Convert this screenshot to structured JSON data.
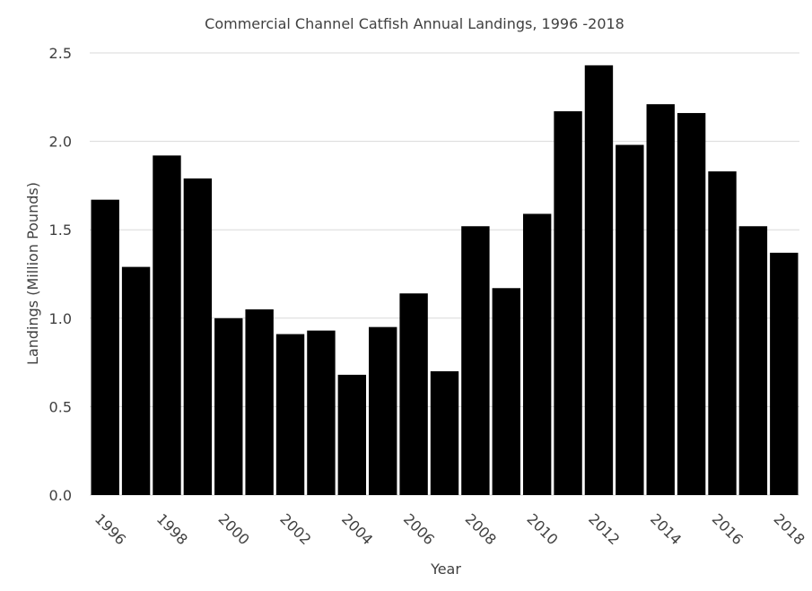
{
  "chart_data": {
    "type": "bar",
    "title": "Commercial Channel Catfish Annual Landings, 1996 -2018",
    "xlabel": "Year",
    "ylabel": "Landings (Million Pounds)",
    "ylim": [
      0,
      2.5
    ],
    "yticks": [
      "0.0",
      "0.5",
      "1.0",
      "1.5",
      "2.0",
      "2.5"
    ],
    "grid": true,
    "legend": "none",
    "bar_color": "#000000",
    "categories": [
      1996,
      1997,
      1998,
      1999,
      2000,
      2001,
      2002,
      2003,
      2004,
      2005,
      2006,
      2007,
      2008,
      2009,
      2010,
      2011,
      2012,
      2013,
      2014,
      2015,
      2016,
      2017,
      2018
    ],
    "values": [
      1.67,
      1.29,
      1.92,
      1.79,
      1.0,
      1.05,
      0.91,
      0.93,
      0.68,
      0.95,
      1.14,
      0.7,
      1.52,
      1.17,
      1.59,
      2.17,
      2.43,
      1.98,
      2.21,
      2.16,
      1.83,
      1.52,
      1.37
    ],
    "xtick_labels": [
      "1996",
      "1998",
      "2000",
      "2002",
      "2004",
      "2006",
      "2008",
      "2010",
      "2012",
      "2014",
      "2016",
      "2018"
    ]
  }
}
